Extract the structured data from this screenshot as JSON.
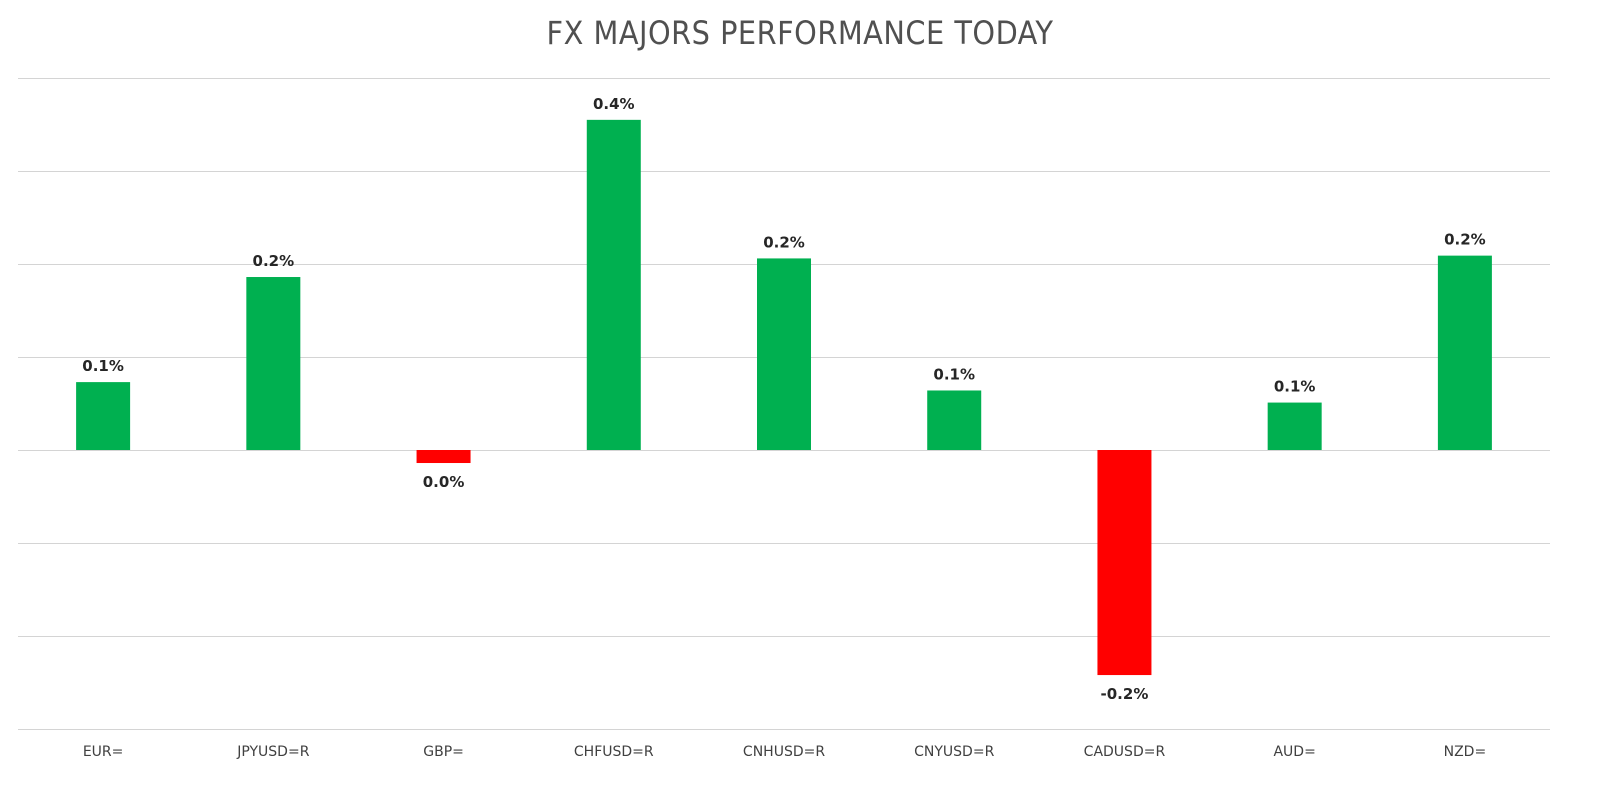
{
  "chart_data": {
    "type": "bar",
    "title": "FX MAJORS PERFORMANCE TODAY",
    "xlabel": "",
    "ylabel": "",
    "categories": [
      "EUR=",
      "JPYUSD=R",
      "GBP=",
      "CHFUSD=R",
      "CNHUSD=R",
      "CNYUSD=R",
      "CADUSD=R",
      "AUD=",
      "NZD="
    ],
    "values": [
      0.073,
      0.186,
      -0.014,
      0.355,
      0.206,
      0.064,
      -0.242,
      0.051,
      0.209
    ],
    "data_labels": [
      "0.1%",
      "0.2%",
      "0.0%",
      "0.4%",
      "0.2%",
      "0.1%",
      "-0.2%",
      "0.1%",
      "0.2%"
    ],
    "ylim": [
      -0.3,
      0.4
    ],
    "ytick_step": 0.1,
    "y_tick_labels_visible": false,
    "grid": true,
    "legend": "none",
    "colors": {
      "positive": "#00B050",
      "negative": "#FF0000",
      "grid": "#D4D4D4",
      "title": "#505050"
    }
  }
}
